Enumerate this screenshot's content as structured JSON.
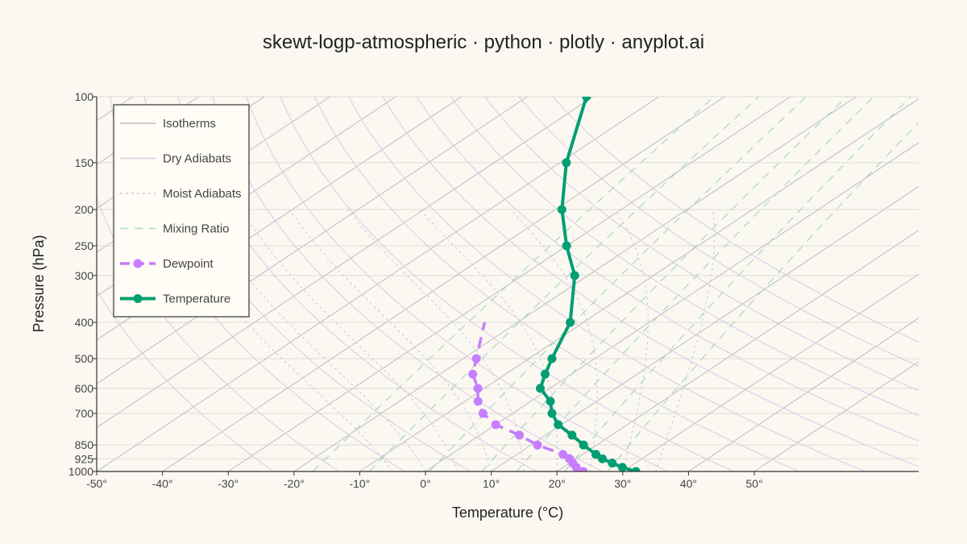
{
  "chart_data": {
    "type": "line",
    "title": "skewt-logp-atmospheric · python · plotly · anyplot.ai",
    "xlabel": "Temperature (°C)",
    "ylabel": "Pressure (hPa)",
    "xlim": [
      -50,
      75
    ],
    "ylim": [
      1000,
      100
    ],
    "y_scale": "log",
    "skew": "isotherms tilted 45° to the right",
    "x_ticks": [
      -50,
      -40,
      -30,
      -20,
      -10,
      0,
      10,
      20,
      30,
      40,
      50
    ],
    "x_tick_labels": [
      "-50°",
      "-40°",
      "-30°",
      "-20°",
      "-10°",
      "0°",
      "10°",
      "20°",
      "30°",
      "40°",
      "50°"
    ],
    "y_ticks": [
      100,
      150,
      200,
      250,
      300,
      400,
      500,
      600,
      700,
      850,
      925,
      1000
    ],
    "y_tick_labels": [
      "100",
      "150",
      "200",
      "250",
      "300",
      "400",
      "500",
      "600",
      "700",
      "850",
      "925",
      "1000"
    ],
    "grid": true,
    "legend_position": "top-left",
    "legend": [
      {
        "label": "Isotherms",
        "style": "thin-solid",
        "color": "#BDBDBD"
      },
      {
        "label": "Dry Adiabats",
        "style": "thin-solid",
        "color": "#D9C8EC"
      },
      {
        "label": "Moist Adiabats",
        "style": "dotted",
        "color": "#C8C8D8"
      },
      {
        "label": "Mixing Ratio",
        "style": "dashed",
        "color": "#A8D8C0"
      },
      {
        "label": "Dewpoint",
        "style": "dashed-marker",
        "color": "#C77DFF"
      },
      {
        "label": "Temperature",
        "style": "solid-marker",
        "color": "#009E73"
      }
    ],
    "series": [
      {
        "name": "Temperature",
        "color": "#009E73",
        "pressure": [
          1000,
          975,
          950,
          925,
          900,
          850,
          800,
          750,
          700,
          650,
          600,
          550,
          500,
          400,
          300,
          250,
          200,
          150,
          100
        ],
        "temperature": [
          32,
          29,
          26.5,
          24,
          22,
          18,
          14,
          9.5,
          6,
          3,
          -1.5,
          -4,
          -6.5,
          -12,
          -22,
          -30,
          -39,
          -49,
          -61
        ]
      },
      {
        "name": "Dewpoint",
        "color": "#C77DFF",
        "pressure": [
          1000,
          975,
          950,
          925,
          900,
          850,
          800,
          750,
          700,
          650,
          600,
          550,
          500
        ],
        "temperature": [
          24,
          22,
          20.5,
          19,
          17,
          11,
          6,
          0,
          -4.5,
          -8,
          -11,
          -15,
          -18
        ]
      }
    ],
    "isotherms_c": [
      -130,
      -120,
      -110,
      -100,
      -90,
      -80,
      -70,
      -60,
      -50,
      -40,
      -30,
      -20,
      -10,
      0,
      10,
      20,
      30,
      40,
      50
    ],
    "dry_adiabats_theta_k": [
      250,
      260,
      270,
      280,
      290,
      300,
      310,
      320,
      330,
      340,
      350,
      360,
      370,
      380,
      390,
      400
    ],
    "moist_adiabats_start_c": [
      -5,
      0,
      5,
      10,
      15,
      20,
      25,
      30,
      35
    ],
    "mixing_ratio_gkg": [
      1,
      2,
      4,
      7,
      10,
      16,
      24
    ]
  },
  "colors": {
    "background": "#FAF8F1",
    "legend_background": "#FFFDF5",
    "axis": "#333333",
    "grid": "#DEDCD4"
  }
}
